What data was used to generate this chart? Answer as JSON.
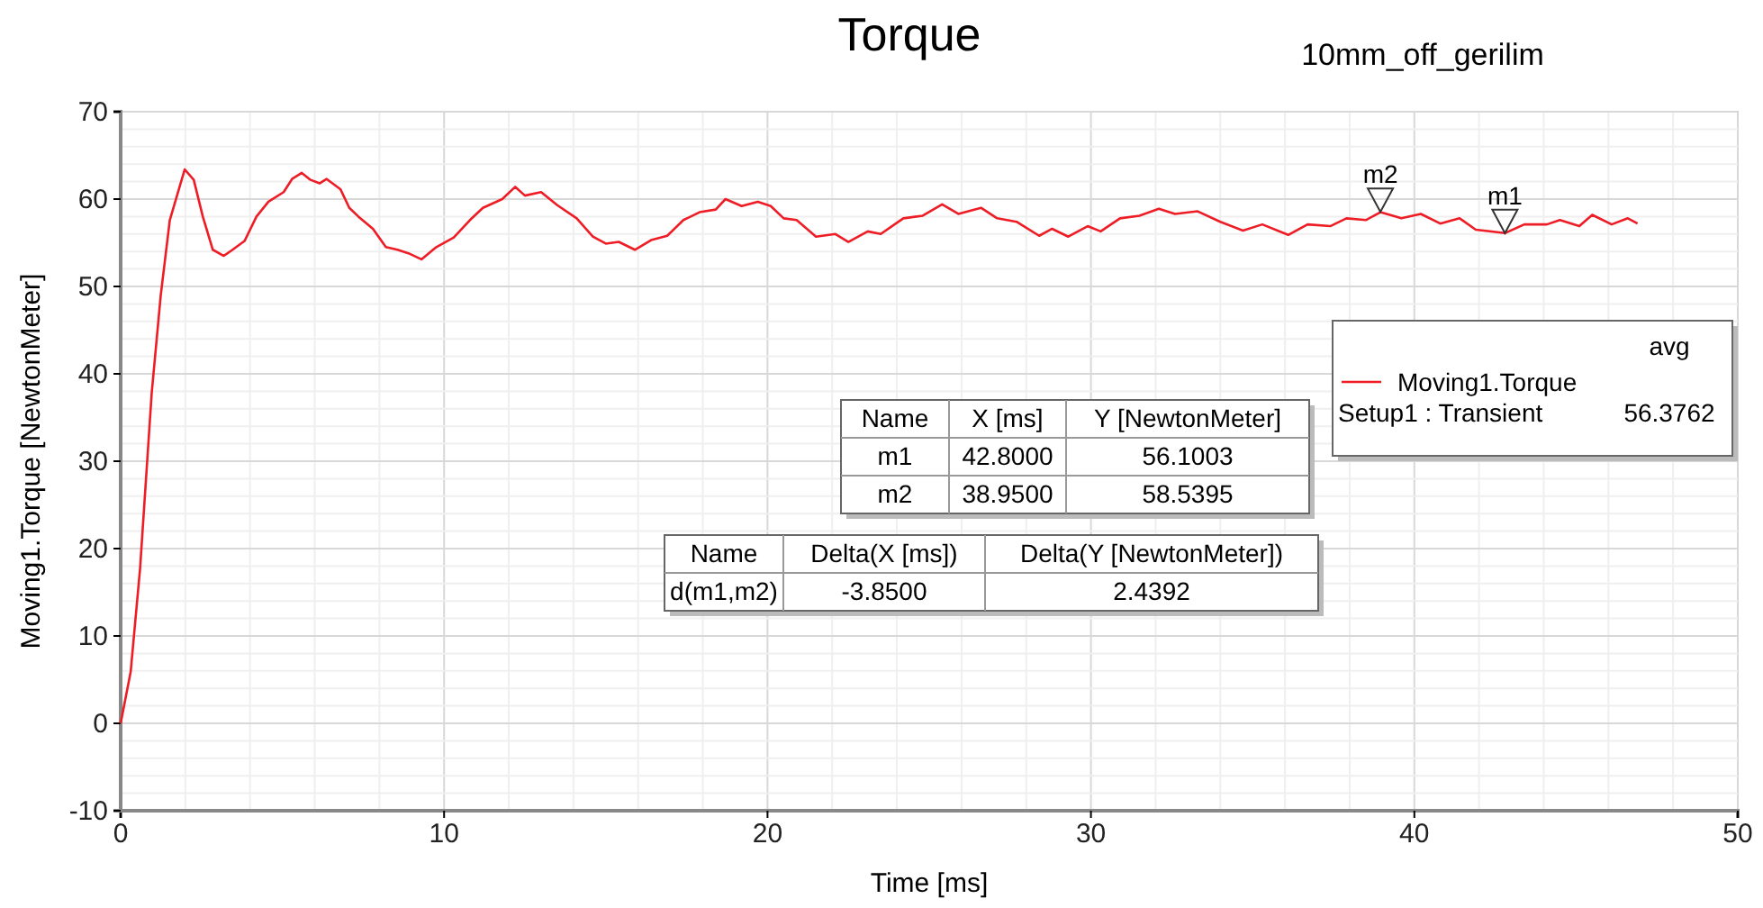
{
  "chart_data": {
    "type": "line",
    "title": "Torque",
    "subtitle": "10mm_off_gerilim",
    "xlabel": "Time [ms]",
    "ylabel": "Moving1.Torque [NewtonMeter]",
    "xlim": [
      0,
      50
    ],
    "xticks": [
      0,
      10,
      20,
      30,
      40,
      50
    ],
    "ylim": [
      -10,
      70
    ],
    "yticks": [
      -10,
      0,
      10,
      20,
      30,
      40,
      50,
      60,
      70
    ],
    "grid": true,
    "legend": "right",
    "marker": "none",
    "line_style": "solid",
    "series": [
      {
        "name": "Moving1.Torque Setup1 : Transient",
        "color": "#ee1c25",
        "x": [
          0,
          0.31,
          0.6,
          0.96,
          1.24,
          1.52,
          1.98,
          2.26,
          2.54,
          2.85,
          3.19,
          3.46,
          3.83,
          4.2,
          4.57,
          5.04,
          5.3,
          5.6,
          5.87,
          6.15,
          6.37,
          6.8,
          7.07,
          7.35,
          7.8,
          8.2,
          8.56,
          8.9,
          9.3,
          9.76,
          10.3,
          10.8,
          11.2,
          11.8,
          12.2,
          12.5,
          13,
          13.5,
          14.1,
          14.6,
          15,
          15.4,
          15.9,
          16.4,
          16.9,
          17.4,
          17.9,
          18.4,
          18.7,
          19.2,
          19.7,
          20.1,
          20.5,
          20.9,
          21.5,
          22.1,
          22.5,
          23.1,
          23.5,
          24.2,
          24.8,
          25.4,
          25.9,
          26.6,
          27.1,
          27.7,
          28.4,
          28.8,
          29.3,
          29.9,
          30.3,
          30.9,
          31.5,
          32.1,
          32.6,
          33.3,
          34,
          34.7,
          35.3,
          36.1,
          36.7,
          37.4,
          37.9,
          38.5,
          38.95,
          39.6,
          40.2,
          40.8,
          41.4,
          41.9,
          42.8,
          43.4,
          44.1,
          44.5,
          45.1,
          45.5,
          46.1,
          46.6,
          46.9
        ],
        "values": [
          0,
          5.9,
          17.7,
          37.8,
          49,
          57.6,
          63.4,
          62.2,
          58,
          54.2,
          53.5,
          54.2,
          55.2,
          58,
          59.7,
          60.8,
          62.3,
          63,
          62.2,
          61.8,
          62.3,
          61.1,
          59,
          58,
          56.6,
          54.5,
          54.2,
          53.8,
          53.1,
          54.5,
          55.6,
          57.6,
          59,
          60,
          61.4,
          60.4,
          60.8,
          59.3,
          57.8,
          55.7,
          54.9,
          55.1,
          54.2,
          55.3,
          55.8,
          57.6,
          58.5,
          58.8,
          60,
          59.2,
          59.7,
          59.2,
          57.8,
          57.6,
          55.7,
          56,
          55.1,
          56.3,
          56,
          57.8,
          58.1,
          59.4,
          58.3,
          59,
          57.8,
          57.4,
          55.8,
          56.6,
          55.7,
          56.9,
          56.3,
          57.8,
          58.1,
          58.9,
          58.3,
          58.6,
          57.4,
          56.4,
          57.1,
          55.9,
          57.1,
          56.9,
          57.8,
          57.6,
          58.5,
          57.8,
          58.3,
          57.2,
          57.8,
          56.5,
          56.1,
          57.1,
          57.1,
          57.6,
          56.9,
          58.2,
          57.1,
          57.8,
          57.2
        ]
      }
    ],
    "annotations": [
      {
        "text": "m1",
        "x": 42.8,
        "y": 56.1003
      },
      {
        "text": "m2",
        "x": 38.95,
        "y": 58.5395
      },
      "Name",
      "X [ms]",
      "Y [NewtonMeter]",
      "m1",
      "42.8000",
      "56.1003",
      "m2",
      "38.9500",
      "58.5395",
      "Name",
      "Delta(X [ms])",
      "Delta(Y [NewtonMeter])",
      "d(m1,m2)",
      "-3.8500",
      "2.4392",
      "avg",
      "56.3762"
    ]
  }
}
